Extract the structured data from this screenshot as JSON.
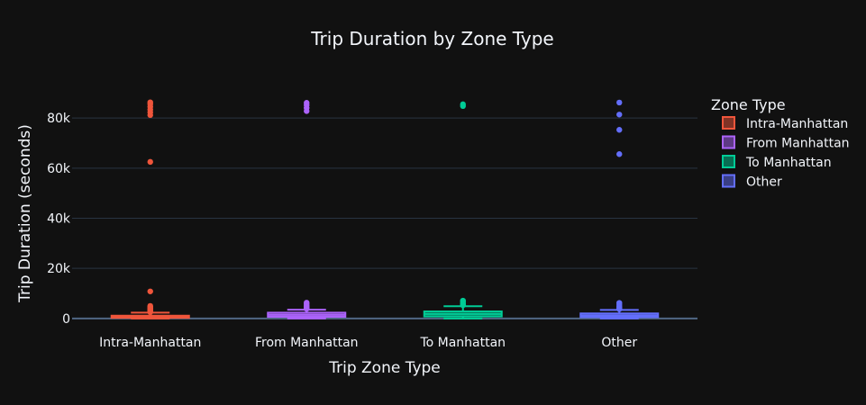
{
  "chart_data": {
    "type": "box",
    "title": "Trip Duration by Zone Type",
    "xlabel": "Trip Zone Type",
    "ylabel": "Trip Duration (seconds)",
    "ylim": [
      -1500,
      93000
    ],
    "yticks": [
      0,
      20000,
      40000,
      60000,
      80000
    ],
    "ytick_labels": [
      "0",
      "20k",
      "40k",
      "60k",
      "80k"
    ],
    "grid": true,
    "legend": {
      "title": "Zone Type",
      "placement": "right"
    },
    "categories": [
      "Intra-Manhattan",
      "From Manhattan",
      "To Manhattan",
      "Other"
    ],
    "series": [
      {
        "name": "Intra-Manhattan",
        "color": "#EF553B",
        "q1": 250,
        "median": 650,
        "q3": 1100,
        "whisker_low": 0,
        "whisker_high": 2300,
        "outliers": [
          2500,
          2800,
          3100,
          3400,
          3700,
          4000,
          4300,
          4600,
          5000,
          10800,
          62500,
          81200,
          82300,
          83400,
          84500,
          85600,
          86300
        ]
      },
      {
        "name": "From Manhattan",
        "color": "#AB63FA",
        "q1": 650,
        "median": 1400,
        "q3": 2300,
        "whisker_low": 0,
        "whisker_high": 3500,
        "outliers": [
          3800,
          4100,
          4400,
          4800,
          5200,
          5700,
          6300,
          82800,
          84000,
          85200,
          86100
        ]
      },
      {
        "name": "To Manhattan",
        "color": "#00CC96",
        "q1": 800,
        "median": 1800,
        "q3": 2800,
        "whisker_low": 0,
        "whisker_high": 4900,
        "outliers": [
          5300,
          5700,
          6100,
          6600,
          7100,
          84800,
          85500
        ]
      },
      {
        "name": "Other",
        "color": "#636EFA",
        "q1": 500,
        "median": 1200,
        "q3": 2000,
        "whisker_low": 0,
        "whisker_high": 3400,
        "outliers": [
          3700,
          4000,
          4400,
          4900,
          5500,
          6200,
          65600,
          75300,
          81400,
          86200
        ]
      }
    ]
  }
}
